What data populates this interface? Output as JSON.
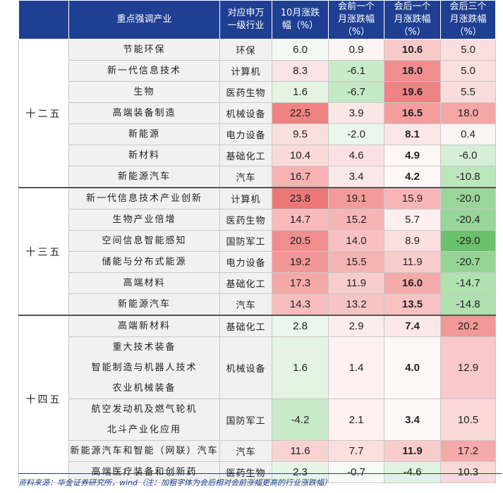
{
  "headers": [
    "重点强调产业",
    "对应申万一级行业",
    "10月涨跌幅（%）",
    "会前一个月涨跌幅（%）",
    "会后一个月涨跌幅（%）",
    "会后三个月涨跌幅（%）"
  ],
  "header_lines": [
    [
      "重点强调产业"
    ],
    [
      "对应申万",
      "一级行业"
    ],
    [
      "10月涨跌",
      "幅（%）"
    ],
    [
      "会前一个",
      "月涨跌幅",
      "（%）"
    ],
    [
      "会后一个",
      "月涨跌幅",
      "（%）"
    ],
    [
      "会后三个",
      "月涨跌幅",
      "（%）"
    ]
  ],
  "periods": [
    {
      "name": "十二五",
      "rows": [
        {
          "industries": [
            "节能环保"
          ],
          "sector": "环保",
          "v10": "6.0",
          "pre": "0.9",
          "post1": "10.6",
          "post3": "5.0",
          "c10": "#f3faf3",
          "cpre": "#fdf4f4",
          "cpost1": "#f8c9c9",
          "cpost3": "#fbdede"
        },
        {
          "industries": [
            "新一代信息技术"
          ],
          "sector": "计算机",
          "v10": "8.3",
          "pre": "-6.1",
          "post1": "18.0",
          "post3": "5.0",
          "c10": "#fbe3e3",
          "cpre": "#c9ebc9",
          "cpost1": "#f08e8e",
          "cpost3": "#fbdede"
        },
        {
          "industries": [
            "生物"
          ],
          "sector": "医药生物",
          "v10": "1.6",
          "pre": "-6.7",
          "post1": "19.6",
          "post3": "5.5",
          "c10": "#e3f4e3",
          "cpre": "#c5e9c5",
          "cpost1": "#ee8383",
          "cpost3": "#fbdcdc"
        },
        {
          "industries": [
            "高端装备制造"
          ],
          "sector": "机械设备",
          "v10": "22.5",
          "pre": "3.9",
          "post1": "16.5",
          "post3": "18.0",
          "c10": "#ef8383",
          "cpre": "#fbe6e6",
          "cpost1": "#f39d9d",
          "cpost3": "#f5a6a6"
        },
        {
          "industries": [
            "新能源"
          ],
          "sector": "电力设备",
          "v10": "9.5",
          "pre": "-2.0",
          "post1": "8.1",
          "post3": "0.4",
          "c10": "#fbdfdf",
          "cpre": "#ecf7ec",
          "cpost1": "#fde6e6",
          "cpost3": "#fcf3f3"
        },
        {
          "industries": [
            "新材料"
          ],
          "sector": "基础化工",
          "v10": "10.4",
          "pre": "4.6",
          "post1": "4.9",
          "post3": "-6.0",
          "c10": "#fad9d9",
          "cpre": "#fbe2e2",
          "cpost1": "#fff6f6",
          "cpost3": "#d6efd6"
        },
        {
          "industries": [
            "新能源汽车"
          ],
          "sector": "汽车",
          "v10": "16.7",
          "pre": "3.4",
          "post1": "4.2",
          "post3": "-10.8",
          "c10": "#f6b2b2",
          "cpre": "#fbe8e8",
          "cpost1": "#fff7f7",
          "cpost3": "#bde6bd"
        }
      ]
    },
    {
      "name": "十三五",
      "rows": [
        {
          "industries": [
            "新一代信息技术产业创新"
          ],
          "sector": "计算机",
          "v10": "23.8",
          "pre": "19.1",
          "post1": "15.9",
          "post3": "-20.0",
          "c10": "#ed7777",
          "cpre": "#f39b9b",
          "cpost1": "#f7b5b5",
          "cpost3": "#9ad69a"
        },
        {
          "industries": [
            "生物产业倍增"
          ],
          "sector": "医药生物",
          "v10": "14.7",
          "pre": "15.2",
          "post1": "5.7",
          "post3": "-20.4",
          "c10": "#f7bbbb",
          "cpre": "#f6b5b5",
          "cpost1": "#fdefef",
          "cpost3": "#98d598"
        },
        {
          "industries": [
            "空间信息智能感知"
          ],
          "sector": "国防军工",
          "v10": "20.5",
          "pre": "14.0",
          "post1": "8.9",
          "post3": "-29.0",
          "c10": "#f08d8d",
          "cpre": "#f8c0c0",
          "cpost1": "#fcdfdf",
          "cpost3": "#6cc16c"
        },
        {
          "industries": [
            "储能与分布式能源"
          ],
          "sector": "电力设备",
          "v10": "19.2",
          "pre": "15.5",
          "post1": "11.9",
          "post3": "-20.7",
          "c10": "#f29797",
          "cpre": "#f6b3b3",
          "cpost1": "#f9cccc",
          "cpost3": "#96d496"
        },
        {
          "industries": [
            "高端材料"
          ],
          "sector": "基础化工",
          "v10": "17.3",
          "pre": "11.9",
          "post1": "16.0",
          "post3": "-14.7",
          "c10": "#f5a8a8",
          "cpre": "#f9cccc",
          "cpost1": "#f5abab",
          "cpost3": "#b1e0b1"
        },
        {
          "industries": [
            "新能源汽车"
          ],
          "sector": "汽车",
          "v10": "14.3",
          "pre": "13.2",
          "post1": "13.5",
          "post3": "-14.8",
          "c10": "#f7bdbd",
          "cpre": "#f8c4c4",
          "cpost1": "#f8c2c2",
          "cpost3": "#b0e0b0"
        }
      ]
    },
    {
      "name": "十四五",
      "rows": [
        {
          "industries": [
            "高端新材料"
          ],
          "sector": "基础化工",
          "v10": "2.8",
          "pre": "2.9",
          "post1": "7.4",
          "post3": "20.2",
          "c10": "#eaf7ea",
          "cpre": "#fcecec",
          "cpost1": "#fde8e8",
          "cpost3": "#f29898"
        },
        {
          "industries": [
            "重大技术装备",
            "智能制造与机器人技术",
            "农业机械装备"
          ],
          "sector": "机械设备",
          "v10": "1.6",
          "pre": "1.4",
          "post1": "4.0",
          "post3": "12.9",
          "c10": "#e3f4e3",
          "cpre": "#fdf1f1",
          "cpost1": "#fff7f7",
          "cpost3": "#f9c8c8"
        },
        {
          "industries": [
            "航空发动机及燃气轮机",
            "北斗产业化应用"
          ],
          "sector": "国防军工",
          "v10": "-4.2",
          "pre": "2.1",
          "post1": "3.4",
          "post3": "10.5",
          "c10": "#c8eac8",
          "cpre": "#fdf0f0",
          "cpost1": "#fff8f8",
          "cpost3": "#fad7d7"
        },
        {
          "industries": [
            "新能源汽车和智能（网联）汽车"
          ],
          "sector": "汽车",
          "v10": "11.6",
          "pre": "7.7",
          "post1": "11.9",
          "post3": "17.2",
          "c10": "#f9d2d2",
          "cpre": "#fbdede",
          "cpost1": "#f9cccc",
          "cpost3": "#f5a9a9"
        },
        {
          "industries": [
            "高端医疗装备和创新药"
          ],
          "sector": "医药生物",
          "v10": "2.3",
          "pre": "-0.7",
          "post1": "-4.6",
          "post3": "10.3",
          "c10": "#e6f5e6",
          "cpre": "#f6fbf6",
          "cpost1": "#e1f3e1",
          "cpost3": "#fad8d8"
        }
      ]
    }
  ],
  "source": "资料来源：华金证券研究所，wind（注：加粗字体为会后相对会前涨幅更高的行业涨跌幅）"
}
